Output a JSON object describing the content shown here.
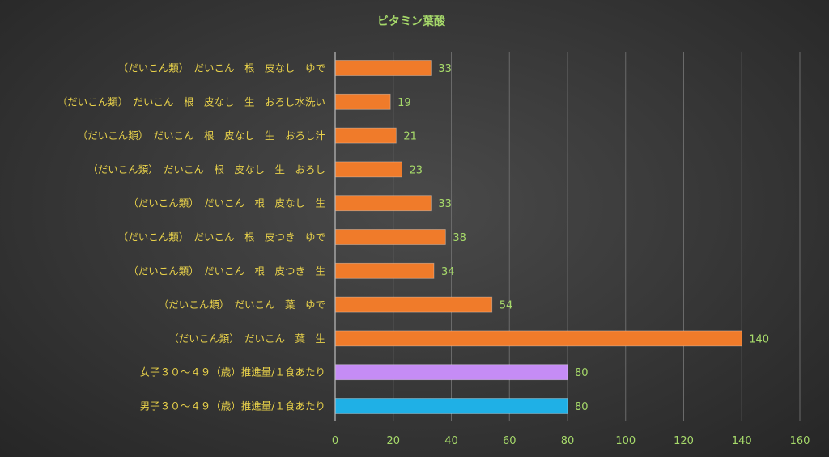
{
  "chart_data": {
    "type": "bar",
    "orientation": "horizontal",
    "title": "ビタミン葉酸",
    "categories": [
      "（だいこん類）　だいこん　根　皮なし　ゆで",
      "（だいこん類）　だいこん　根　皮なし　生　おろし水洗い",
      "（だいこん類）　だいこん　根　皮なし　生　おろし汁",
      "（だいこん類）　だいこん　根　皮なし　生　おろし",
      "（だいこん類）　だいこん　根　皮なし　生",
      "（だいこん類）　だいこん　根　皮つき　ゆで",
      "（だいこん類）　だいこん　根　皮つき　生",
      "（だいこん類）　だいこん　葉　ゆで",
      "（だいこん類）　だいこん　葉　生",
      "女子３０～４９（歳）推進量/１食あたり",
      "男子３０～４９（歳）推進量/１食あたり"
    ],
    "values": [
      33,
      19,
      21,
      23,
      33,
      38,
      34,
      54,
      140,
      80,
      80
    ],
    "bar_colors": [
      "#f07b2a",
      "#f07b2a",
      "#f07b2a",
      "#f07b2a",
      "#f07b2a",
      "#f07b2a",
      "#f07b2a",
      "#f07b2a",
      "#f07b2a",
      "#c58cf5",
      "#1fb0e6"
    ],
    "xlim": [
      0,
      160
    ],
    "x_ticks": [
      0,
      20,
      40,
      60,
      80,
      100,
      120,
      140,
      160
    ],
    "grid": true,
    "legend": "none",
    "colors": {
      "title": "#a6d96a",
      "category_label": "#e8d14a",
      "tick_label": "#a6d96a",
      "data_label": "#a6d96a"
    }
  }
}
